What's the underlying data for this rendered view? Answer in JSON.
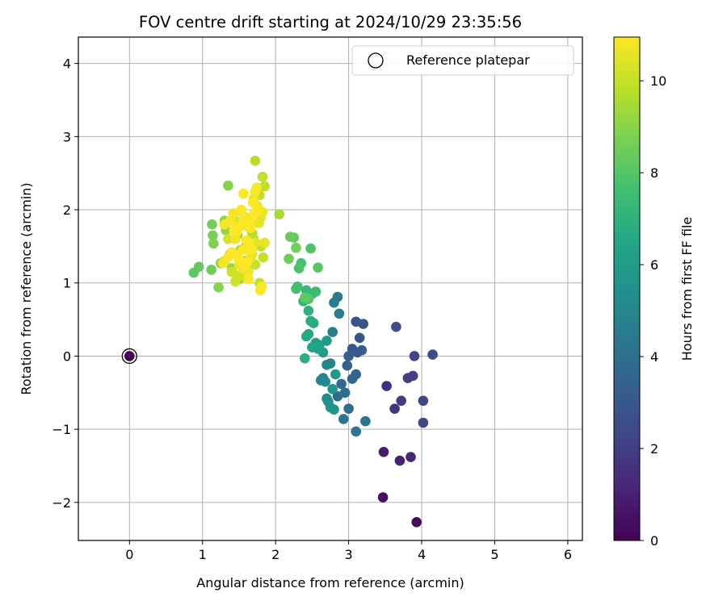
{
  "chart_data": {
    "type": "scatter",
    "title": "FOV centre drift starting at 2024/10/29 23:35:56",
    "xlabel": "Angular distance from reference (arcmin)",
    "ylabel": "Rotation from reference (arcmin)",
    "xlim": [
      -0.7,
      6.2
    ],
    "ylim": [
      -2.52,
      4.36
    ],
    "xticks": [
      0,
      1,
      2,
      3,
      4,
      5,
      6
    ],
    "yticks": [
      -2,
      -1,
      0,
      1,
      2,
      3,
      4
    ],
    "grid": true,
    "legend": {
      "placement": "upper right",
      "label": "Reference platepar"
    },
    "reference_point": {
      "x": 0,
      "y": 0
    },
    "colorbar": {
      "label": "Hours from first FF file",
      "colormap": "viridis",
      "range": [
        0,
        10.95
      ],
      "ticks": [
        0,
        2,
        4,
        6,
        8,
        10
      ]
    },
    "series": [
      {
        "x": [
          0.0,
          3.93,
          3.47,
          3.48,
          3.7,
          3.85,
          3.52,
          3.63,
          3.72,
          3.81,
          3.88,
          3.9,
          4.02,
          4.02,
          4.15,
          3.65,
          3.1,
          3.2,
          3.15,
          3.05,
          3.12,
          3.18,
          3.0,
          2.98,
          3.1,
          3.05,
          2.9,
          2.85,
          2.95,
          3.0,
          2.93,
          3.23,
          3.1,
          2.85,
          2.87,
          2.8,
          2.78,
          2.75,
          2.7,
          2.65,
          2.62,
          2.68,
          2.7,
          2.72,
          2.75,
          2.8,
          2.78,
          2.82,
          2.7,
          2.65,
          2.6,
          2.55,
          2.58,
          2.5,
          2.45,
          2.42,
          2.48,
          2.52,
          2.4,
          2.45,
          2.5,
          2.38,
          2.42,
          2.55,
          2.3,
          2.28,
          2.35,
          2.32,
          2.48,
          2.45,
          2.58,
          2.4,
          2.25,
          2.2,
          2.18,
          2.28,
          2.05
        ],
        "y": [
          0.0,
          -2.27,
          -1.93,
          -1.31,
          -1.43,
          -1.38,
          -0.41,
          -0.72,
          -0.61,
          -0.3,
          -0.27,
          0.0,
          -0.61,
          -0.91,
          0.02,
          0.4,
          0.47,
          0.44,
          0.25,
          0.1,
          0.05,
          0.08,
          0.0,
          -0.13,
          -0.25,
          -0.31,
          -0.38,
          -0.55,
          -0.5,
          -0.72,
          -0.86,
          -0.89,
          -1.03,
          0.81,
          0.58,
          0.73,
          0.33,
          -0.1,
          -0.12,
          -0.3,
          -0.33,
          -0.35,
          -0.58,
          -0.62,
          -0.7,
          -0.73,
          -0.45,
          -0.25,
          0.21,
          0.05,
          0.15,
          0.18,
          0.1,
          0.12,
          0.3,
          0.27,
          0.48,
          0.45,
          -0.03,
          0.62,
          0.85,
          0.75,
          0.9,
          0.88,
          0.95,
          0.92,
          1.27,
          1.2,
          1.47,
          0.78,
          1.21,
          0.8,
          1.62,
          1.63,
          1.33,
          1.48,
          1.94
        ],
        "hours": [
          0.1,
          0.3,
          0.5,
          0.8,
          1.0,
          1.2,
          1.5,
          1.7,
          1.9,
          2.0,
          2.1,
          2.2,
          2.3,
          2.4,
          2.5,
          2.6,
          2.7,
          2.8,
          2.9,
          3.0,
          3.1,
          3.2,
          3.3,
          3.4,
          3.5,
          3.6,
          3.7,
          3.8,
          3.9,
          4.0,
          4.1,
          4.2,
          4.3,
          4.4,
          4.5,
          4.6,
          4.7,
          4.8,
          4.9,
          5.0,
          5.1,
          5.2,
          5.3,
          5.4,
          5.5,
          5.6,
          5.7,
          5.8,
          5.9,
          6.0,
          6.1,
          6.2,
          6.3,
          6.4,
          6.5,
          6.6,
          6.7,
          6.8,
          6.9,
          7.0,
          7.1,
          7.2,
          7.3,
          7.4,
          7.5,
          7.6,
          7.7,
          7.8,
          7.9,
          8.0,
          8.1,
          8.2,
          8.3,
          8.4,
          8.5,
          8.6,
          9.5
        ]
      },
      {
        "x": [
          0.88,
          0.95,
          1.12,
          1.13,
          1.14,
          1.15,
          1.22,
          1.25,
          1.3,
          1.32,
          1.35,
          1.38,
          1.4,
          1.42,
          1.45,
          1.48,
          1.5,
          1.52,
          1.55,
          1.58,
          1.6,
          1.62,
          1.65,
          1.68,
          1.7,
          1.72,
          1.75,
          1.78,
          1.8,
          1.82,
          1.85,
          1.83,
          1.78,
          1.72,
          1.65,
          1.6,
          1.55,
          1.5,
          1.45,
          1.4,
          1.35,
          1.3,
          1.48,
          1.52,
          1.58,
          1.62,
          1.68,
          1.73,
          1.77,
          1.8,
          1.85,
          1.82,
          1.75,
          1.7,
          1.66,
          1.62,
          1.55,
          1.5,
          1.45,
          1.42,
          1.38,
          1.3,
          1.28,
          1.35,
          1.4,
          1.47,
          1.53,
          1.57,
          1.63,
          1.67,
          1.72,
          1.76,
          1.79,
          1.81,
          1.65,
          1.6,
          1.55,
          1.48,
          1.43,
          1.74,
          1.69,
          1.59,
          1.64,
          1.5,
          1.46,
          1.56,
          1.61,
          1.71,
          1.66,
          1.53
        ],
        "y": [
          1.14,
          1.22,
          1.18,
          1.8,
          1.65,
          1.54,
          0.94,
          1.27,
          1.85,
          1.72,
          2.33,
          1.4,
          1.2,
          1.88,
          1.72,
          1.65,
          1.05,
          1.45,
          1.8,
          1.3,
          1.52,
          1.2,
          1.75,
          1.68,
          1.6,
          2.67,
          2.3,
          2.2,
          1.5,
          2.45,
          2.32,
          1.35,
          1.0,
          1.25,
          1.3,
          1.08,
          1.15,
          1.1,
          1.02,
          1.15,
          1.6,
          1.3,
          1.83,
          1.98,
          1.9,
          1.48,
          1.4,
          1.55,
          1.82,
          1.9,
          1.55,
          1.97,
          2.05,
          2.15,
          1.35,
          1.15,
          1.2,
          1.25,
          1.6,
          1.95,
          1.85,
          1.8,
          1.27,
          1.35,
          1.42,
          1.7,
          1.78,
          1.88,
          1.05,
          1.45,
          2.25,
          2.0,
          0.9,
          0.95,
          1.85,
          1.58,
          1.45,
          1.38,
          1.72,
          2.3,
          2.1,
          1.25,
          1.55,
          1.32,
          1.76,
          2.22,
          1.28,
          1.95,
          1.75,
          2.0
        ],
        "hours": [
          8.2,
          8.3,
          8.5,
          8.6,
          8.7,
          8.8,
          8.9,
          9.0,
          9.0,
          9.1,
          8.9,
          9.1,
          9.2,
          9.2,
          9.3,
          9.3,
          9.4,
          9.4,
          9.5,
          9.5,
          9.6,
          9.6,
          9.7,
          9.7,
          9.8,
          9.8,
          9.8,
          9.9,
          9.9,
          9.9,
          9.9,
          10.0,
          10.0,
          10.0,
          10.1,
          10.1,
          10.1,
          10.2,
          10.2,
          10.2,
          10.3,
          10.3,
          10.3,
          10.4,
          10.4,
          10.4,
          10.5,
          10.5,
          10.5,
          10.5,
          10.6,
          10.6,
          10.6,
          10.6,
          10.7,
          10.7,
          10.7,
          10.7,
          10.8,
          10.8,
          10.8,
          10.8,
          10.8,
          10.9,
          10.9,
          10.9,
          10.9,
          10.9,
          10.9,
          10.9,
          10.9,
          10.9,
          10.9,
          10.9,
          10.9,
          10.9,
          10.9,
          10.9,
          10.9,
          10.9,
          10.9,
          10.9,
          10.9,
          10.95,
          10.95,
          10.95,
          10.95,
          10.95,
          10.95,
          10.95
        ]
      }
    ]
  }
}
